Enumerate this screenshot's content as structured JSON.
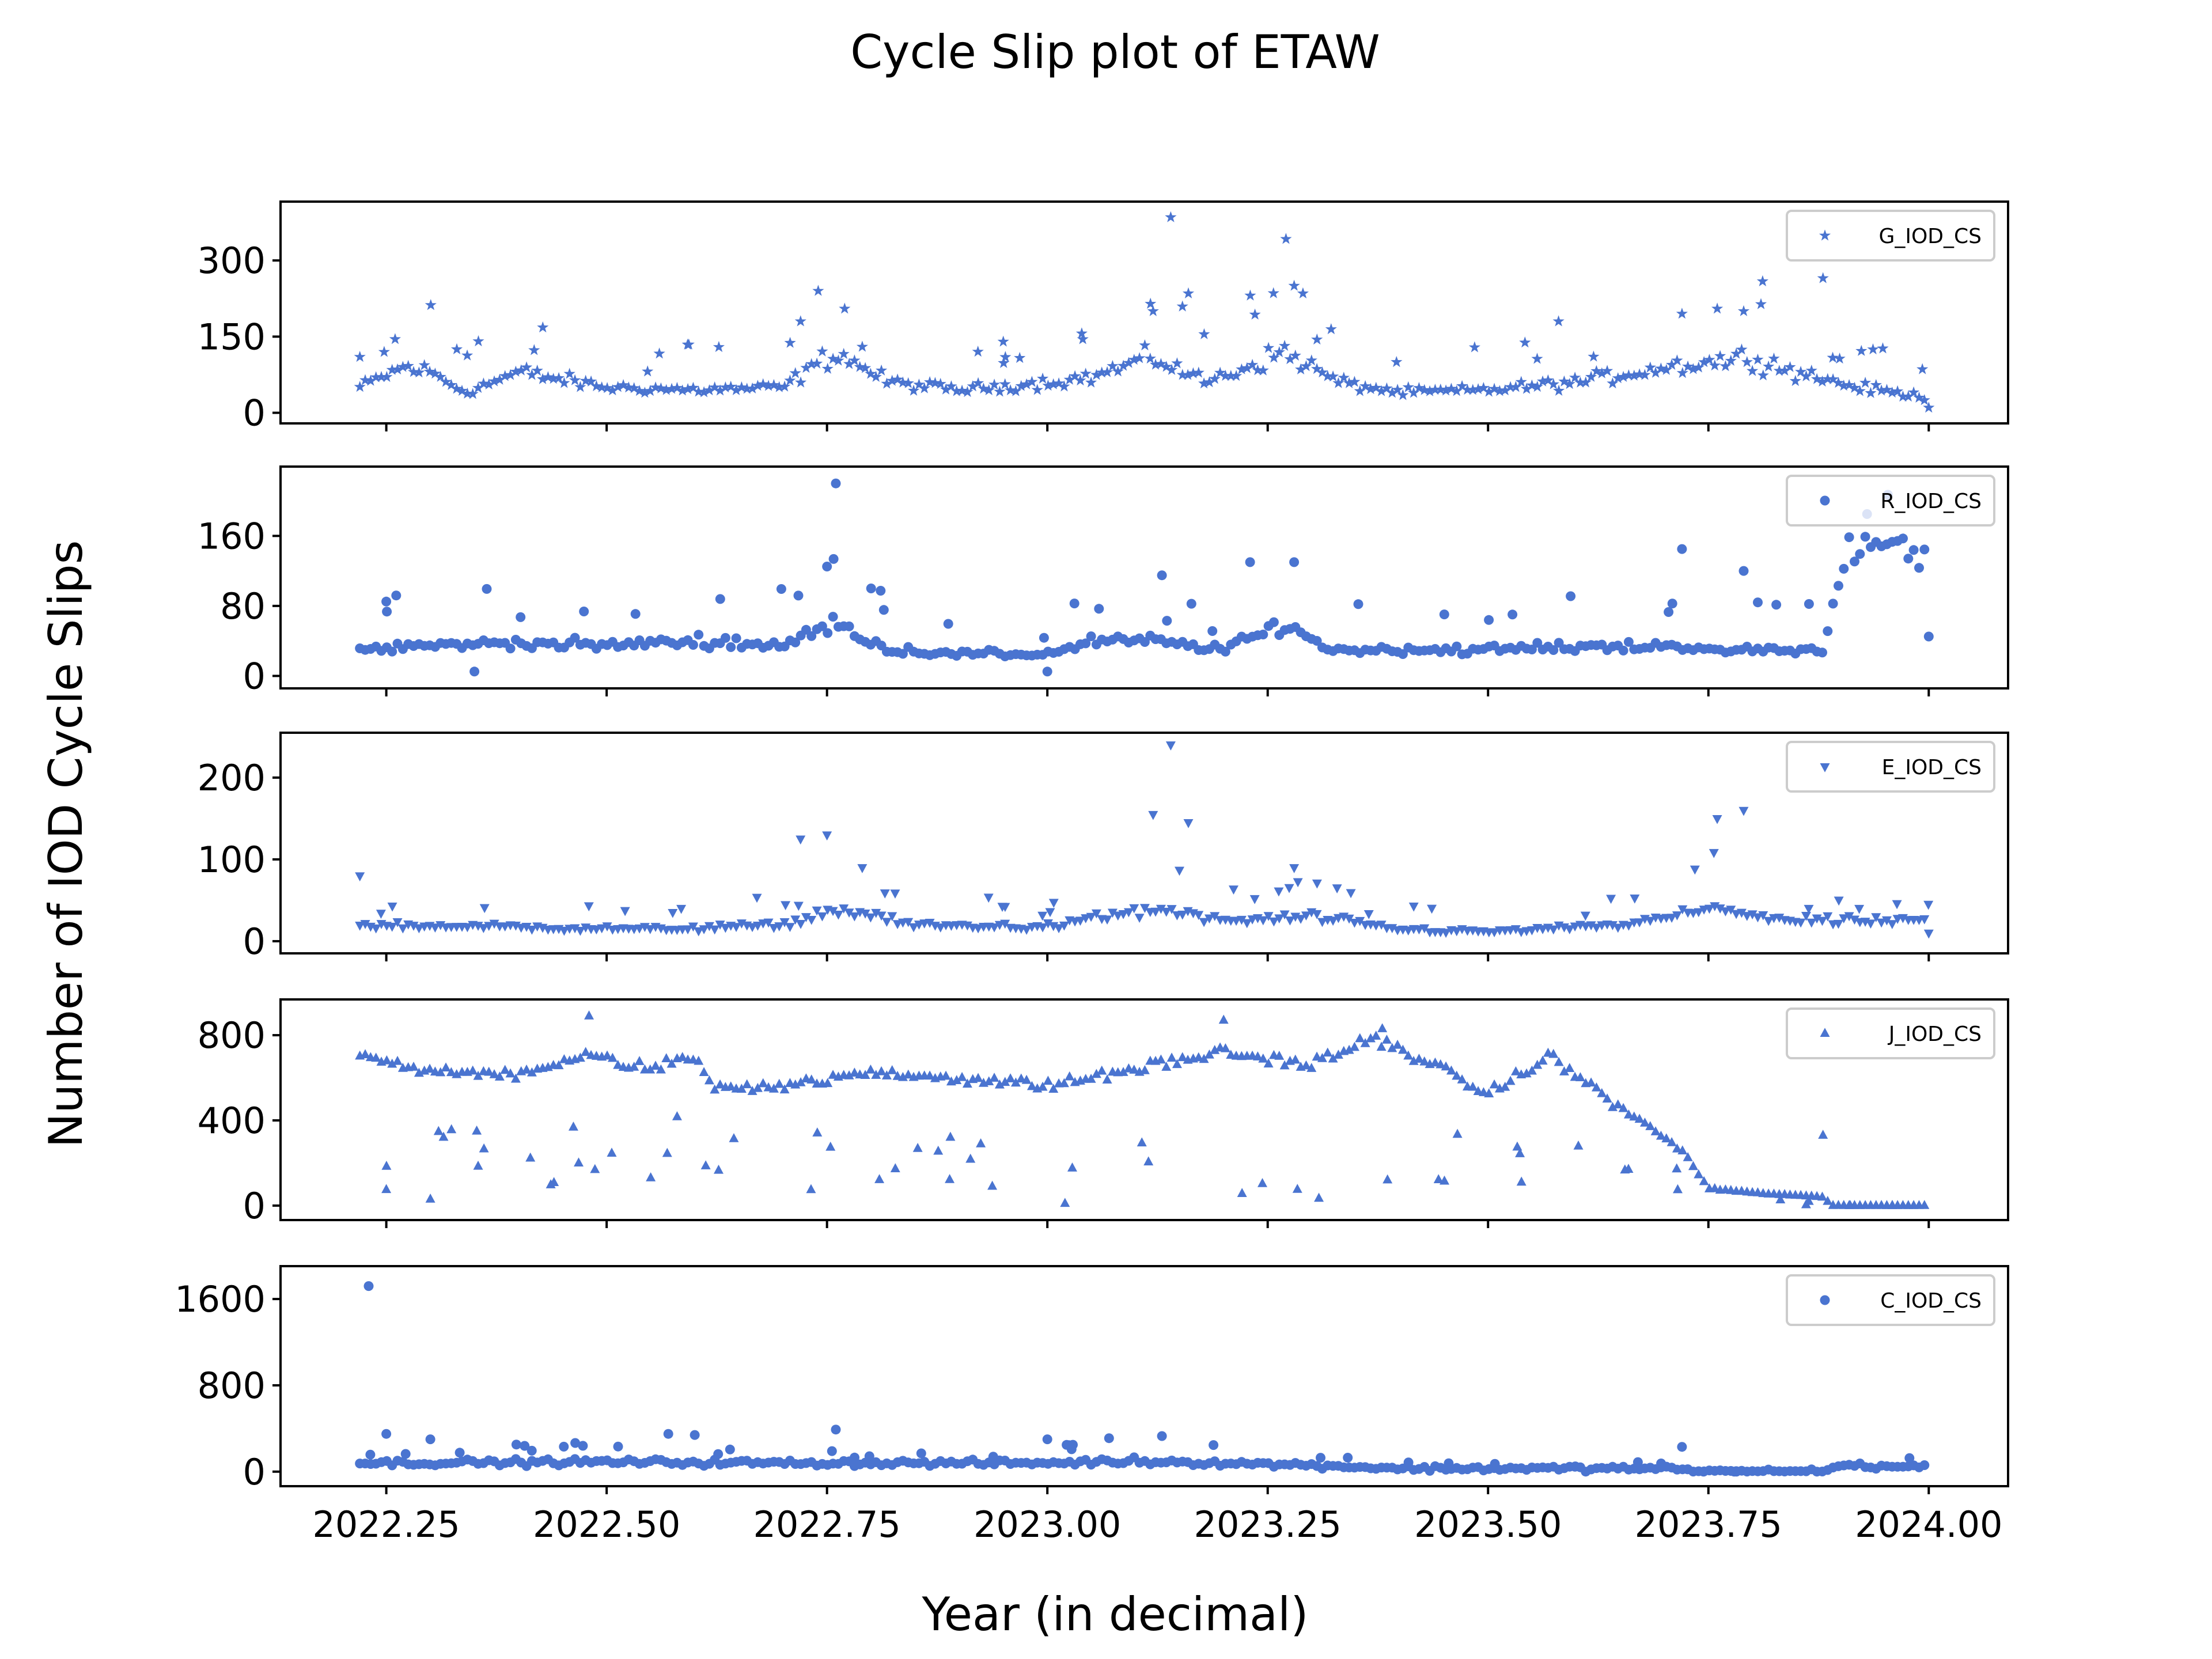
{
  "figure": {
    "title": "Cycle Slip plot of ETAW",
    "xlabel": "Year (in decimal)",
    "ylabel": "Number of IOD Cycle Slips"
  },
  "colors": {
    "marker": "#4a74d0",
    "axis": "#000000",
    "legend_border": "#cccccc"
  },
  "chart_data": {
    "type": "scatter",
    "title": "Cycle Slip plot of ETAW",
    "xlabel": "Year (in decimal)",
    "ylabel": "Number of IOD Cycle Slips",
    "xlim": [
      2022.13,
      2024.09
    ],
    "xticks": [
      2022.25,
      2022.5,
      2022.75,
      2023.0,
      2023.25,
      2023.5,
      2023.75,
      2024.0
    ],
    "xtick_labels": [
      "2022.25",
      "2022.50",
      "2022.75",
      "2023.00",
      "2023.25",
      "2023.50",
      "2023.75",
      "2024.00"
    ],
    "x_start": 2022.22,
    "x_end": 2024.0,
    "x_step": 0.0061,
    "series": [
      {
        "name": "G_IOD_CS",
        "marker": "star",
        "ylim": [
          -5,
          400
        ],
        "yticks": [
          0,
          150,
          300
        ],
        "ytick_labels": [
          "0",
          "150",
          "300"
        ],
        "anchors": [
          [
            2022.22,
            50
          ],
          [
            2022.27,
            90
          ],
          [
            2022.3,
            80
          ],
          [
            2022.34,
            40
          ],
          [
            2022.4,
            80
          ],
          [
            2022.5,
            50
          ],
          [
            2022.6,
            45
          ],
          [
            2022.7,
            50
          ],
          [
            2022.76,
            120
          ],
          [
            2022.82,
            60
          ],
          [
            2022.9,
            45
          ],
          [
            2023.0,
            60
          ],
          [
            2023.05,
            70
          ],
          [
            2023.12,
            110
          ],
          [
            2023.18,
            60
          ],
          [
            2023.27,
            120
          ],
          [
            2023.33,
            60
          ],
          [
            2023.4,
            40
          ],
          [
            2023.5,
            45
          ],
          [
            2023.6,
            60
          ],
          [
            2023.7,
            90
          ],
          [
            2023.8,
            110
          ],
          [
            2023.85,
            80
          ],
          [
            2023.92,
            50
          ],
          [
            2024.0,
            30
          ]
        ],
        "spread": 0.5,
        "outliers_n": 40,
        "highlights": [
          [
            2022.22,
            110
          ],
          [
            2022.26,
            145
          ],
          [
            2022.33,
            125
          ],
          [
            2022.72,
            180
          ],
          [
            2022.74,
            240
          ],
          [
            2022.77,
            205
          ],
          [
            2022.79,
            130
          ],
          [
            2022.95,
            140
          ],
          [
            2023.12,
            200
          ],
          [
            2023.14,
            385
          ],
          [
            2023.16,
            235
          ],
          [
            2023.28,
            250
          ],
          [
            2023.29,
            235
          ],
          [
            2023.58,
            180
          ],
          [
            2023.72,
            195
          ],
          [
            2023.76,
            205
          ],
          [
            2023.79,
            200
          ],
          [
            2023.88,
            265
          ],
          [
            2024.0,
            10
          ]
        ]
      },
      {
        "name": "R_IOD_CS",
        "marker": "circle",
        "ylim": [
          -5,
          230
        ],
        "yticks": [
          0,
          80,
          160
        ],
        "ytick_labels": [
          "0",
          "80",
          "160"
        ],
        "anchors": [
          [
            2022.22,
            30
          ],
          [
            2022.3,
            35
          ],
          [
            2022.4,
            38
          ],
          [
            2022.5,
            35
          ],
          [
            2022.6,
            40
          ],
          [
            2022.7,
            35
          ],
          [
            2022.76,
            60
          ],
          [
            2022.82,
            30
          ],
          [
            2022.9,
            25
          ],
          [
            2023.0,
            25
          ],
          [
            2023.05,
            40
          ],
          [
            2023.12,
            40
          ],
          [
            2023.2,
            30
          ],
          [
            2023.27,
            60
          ],
          [
            2023.32,
            30
          ],
          [
            2023.5,
            30
          ],
          [
            2023.65,
            35
          ],
          [
            2023.75,
            30
          ],
          [
            2023.88,
            30
          ],
          [
            2023.9,
            130
          ],
          [
            2023.95,
            150
          ],
          [
            2024.0,
            130
          ]
        ],
        "spread": 0.4,
        "outliers_n": 30,
        "highlights": [
          [
            2022.25,
            85
          ],
          [
            2022.35,
            5
          ],
          [
            2022.76,
            220
          ],
          [
            2022.75,
            125
          ],
          [
            2022.8,
            100
          ],
          [
            2023.0,
            5
          ],
          [
            2023.13,
            115
          ],
          [
            2023.23,
            130
          ],
          [
            2023.28,
            130
          ],
          [
            2023.72,
            145
          ],
          [
            2023.79,
            120
          ],
          [
            2023.93,
            185
          ],
          [
            2024.0,
            45
          ]
        ]
      },
      {
        "name": "E_IOD_CS",
        "marker": "triangle-down",
        "ylim": [
          -5,
          245
        ],
        "yticks": [
          0,
          100,
          200
        ],
        "ytick_labels": [
          "0",
          "100",
          "200"
        ],
        "anchors": [
          [
            2022.22,
            20
          ],
          [
            2022.4,
            18
          ],
          [
            2022.55,
            15
          ],
          [
            2022.7,
            20
          ],
          [
            2022.76,
            40
          ],
          [
            2022.85,
            20
          ],
          [
            2023.0,
            18
          ],
          [
            2023.12,
            40
          ],
          [
            2023.2,
            25
          ],
          [
            2023.3,
            30
          ],
          [
            2023.4,
            15
          ],
          [
            2023.5,
            12
          ],
          [
            2023.65,
            20
          ],
          [
            2023.76,
            40
          ],
          [
            2023.85,
            25
          ],
          [
            2024.0,
            25
          ]
        ],
        "spread": 0.55,
        "outliers_n": 40,
        "highlights": [
          [
            2022.22,
            80
          ],
          [
            2022.72,
            125
          ],
          [
            2022.75,
            130
          ],
          [
            2022.79,
            90
          ],
          [
            2023.12,
            155
          ],
          [
            2023.14,
            240
          ],
          [
            2023.16,
            145
          ],
          [
            2023.28,
            90
          ],
          [
            2023.76,
            150
          ],
          [
            2023.79,
            160
          ],
          [
            2024.0,
            10
          ]
        ]
      },
      {
        "name": "J_IOD_CS",
        "marker": "triangle-up",
        "ylim": [
          -30,
          930
        ],
        "yticks": [
          0,
          400,
          800
        ],
        "ytick_labels": [
          "0",
          "400",
          "800"
        ],
        "anchors": [
          [
            2022.22,
            720
          ],
          [
            2022.3,
            620
          ],
          [
            2022.4,
            620
          ],
          [
            2022.48,
            700
          ],
          [
            2022.55,
            640
          ],
          [
            2022.6,
            700
          ],
          [
            2022.62,
            560
          ],
          [
            2022.7,
            560
          ],
          [
            2022.8,
            620
          ],
          [
            2022.9,
            600
          ],
          [
            2023.0,
            560
          ],
          [
            2023.1,
            640
          ],
          [
            2023.2,
            720
          ],
          [
            2023.3,
            660
          ],
          [
            2023.37,
            780
          ],
          [
            2023.42,
            700
          ],
          [
            2023.5,
            520
          ],
          [
            2023.57,
            700
          ],
          [
            2023.65,
            460
          ],
          [
            2023.72,
            260
          ],
          [
            2023.75,
            80
          ],
          [
            2023.8,
            60
          ],
          [
            2023.88,
            40
          ],
          [
            2023.89,
            0
          ],
          [
            2024.0,
            0
          ]
        ],
        "spread": 0.1,
        "outliers_n": 55,
        "highlights": [
          [
            2022.48,
            890
          ],
          [
            2022.25,
            75
          ],
          [
            2022.3,
            30
          ],
          [
            2022.55,
            130
          ],
          [
            2023.02,
            10
          ],
          [
            2023.2,
            870
          ],
          [
            2023.38,
            830
          ],
          [
            2023.88,
            330
          ]
        ]
      },
      {
        "name": "C_IOD_CS",
        "marker": "circle",
        "ylim": [
          -60,
          1830
        ],
        "yticks": [
          0,
          800,
          1600
        ],
        "ytick_labels": [
          "0",
          "800",
          "1600"
        ],
        "anchors": [
          [
            2022.22,
            80
          ],
          [
            2022.5,
            90
          ],
          [
            2022.7,
            80
          ],
          [
            2023.0,
            80
          ],
          [
            2023.1,
            100
          ],
          [
            2023.3,
            60
          ],
          [
            2023.4,
            30
          ],
          [
            2023.7,
            30
          ],
          [
            2023.74,
            0
          ],
          [
            2023.88,
            0
          ],
          [
            2023.9,
            60
          ],
          [
            2024.0,
            40
          ]
        ],
        "spread": 0.8,
        "outliers_n": 35,
        "highlights": [
          [
            2022.23,
            1720
          ],
          [
            2022.25,
            350
          ],
          [
            2022.3,
            300
          ],
          [
            2022.57,
            350
          ],
          [
            2022.6,
            340
          ],
          [
            2022.76,
            390
          ],
          [
            2023.0,
            300
          ],
          [
            2023.07,
            310
          ],
          [
            2023.13,
            330
          ],
          [
            2023.72,
            230
          ]
        ]
      }
    ]
  }
}
